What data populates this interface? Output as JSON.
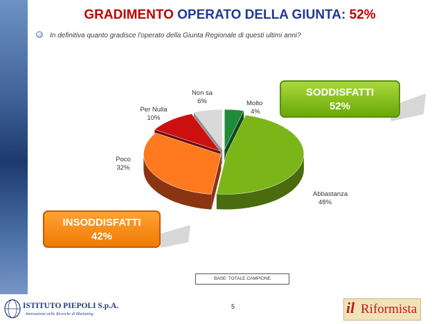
{
  "title": {
    "part1": "GRADIMENTO",
    "part2": "OPERATO DELLA GIUNTA:",
    "part3": "52%"
  },
  "question": "In definitiva quanto gradisce l'operato della Giunta Regionale di questi ultimi anni?",
  "boxes": {
    "satisfied": {
      "label": "SODDISFATTI",
      "value": "52%",
      "color": "#8dc21f"
    },
    "dissatisfied": {
      "label": "INSODDISFATTI",
      "value": "42%",
      "color": "#f58a0f"
    }
  },
  "base_note": "BASE: TOTALE CAMPIONE",
  "page_number": "5",
  "logos": {
    "left": {
      "name": "ISTITUTO PIEPOLI S.p.A.",
      "tagline": "Innovazione nelle Ricerche di Marketing"
    },
    "right": {
      "prefix": "il",
      "name": "Riformista"
    }
  },
  "chart_data": {
    "type": "pie",
    "categories": [
      "Molto",
      "Abbastanza",
      "Poco",
      "Per Nulla",
      "Non sa"
    ],
    "values": [
      4,
      48,
      32,
      10,
      6
    ],
    "labels": [
      "4%",
      "48%",
      "32%",
      "10%",
      "6%"
    ],
    "colors": [
      "#1f8a3a",
      "#7cb518",
      "#ff7a1f",
      "#cc1010",
      "#d9d9d9"
    ],
    "side_colors": [
      "#0e4a1d",
      "#4a6b0e",
      "#8a3412",
      "#6e0808",
      "#8f8f8f"
    ],
    "three_d": true,
    "legend": "none"
  }
}
